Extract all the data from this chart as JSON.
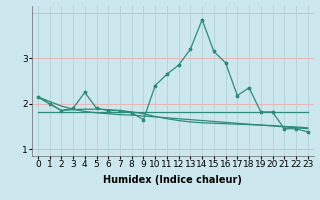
{
  "xlabel": "Humidex (Indice chaleur)",
  "background_color": "#cce8ee",
  "line_color": "#2e8b7a",
  "grid_v_color": "#aaccd4",
  "grid_h_color": "#e8b8b8",
  "x_values": [
    0,
    1,
    2,
    3,
    4,
    5,
    6,
    7,
    8,
    9,
    10,
    11,
    12,
    13,
    14,
    15,
    16,
    17,
    18,
    19,
    20,
    21,
    22,
    23
  ],
  "series1": [
    2.15,
    2.0,
    1.85,
    1.9,
    2.25,
    1.9,
    1.85,
    1.85,
    1.8,
    1.65,
    2.4,
    2.65,
    2.85,
    3.2,
    3.85,
    3.15,
    2.9,
    2.18,
    2.35,
    1.82,
    1.82,
    1.45,
    1.45,
    1.38
  ],
  "series2": [
    2.15,
    2.0,
    1.85,
    1.87,
    1.88,
    1.88,
    1.87,
    1.85,
    1.82,
    1.78,
    1.72,
    1.67,
    1.63,
    1.6,
    1.58,
    1.57,
    1.56,
    1.55,
    1.54,
    1.53,
    1.52,
    1.5,
    1.49,
    1.47
  ],
  "series3": [
    2.15,
    2.05,
    1.95,
    1.88,
    1.83,
    1.8,
    1.78,
    1.76,
    1.75,
    1.73,
    1.71,
    1.69,
    1.67,
    1.65,
    1.63,
    1.61,
    1.59,
    1.57,
    1.55,
    1.53,
    1.51,
    1.49,
    1.47,
    1.45
  ],
  "series4": [
    1.82,
    1.82,
    1.82,
    1.82,
    1.82,
    1.82,
    1.82,
    1.82,
    1.82,
    1.82,
    1.82,
    1.82,
    1.82,
    1.82,
    1.82,
    1.82,
    1.82,
    1.82,
    1.82,
    1.82,
    1.82,
    1.82,
    1.82,
    1.82
  ],
  "ylim": [
    0.85,
    4.15
  ],
  "xlim": [
    -0.5,
    23.5
  ],
  "yticks": [
    1,
    2,
    3
  ],
  "xticks": [
    0,
    1,
    2,
    3,
    4,
    5,
    6,
    7,
    8,
    9,
    10,
    11,
    12,
    13,
    14,
    15,
    16,
    17,
    18,
    19,
    20,
    21,
    22,
    23
  ],
  "xlabel_fontsize": 7,
  "tick_fontsize": 6.5,
  "figsize": [
    3.2,
    2.0
  ],
  "dpi": 100
}
